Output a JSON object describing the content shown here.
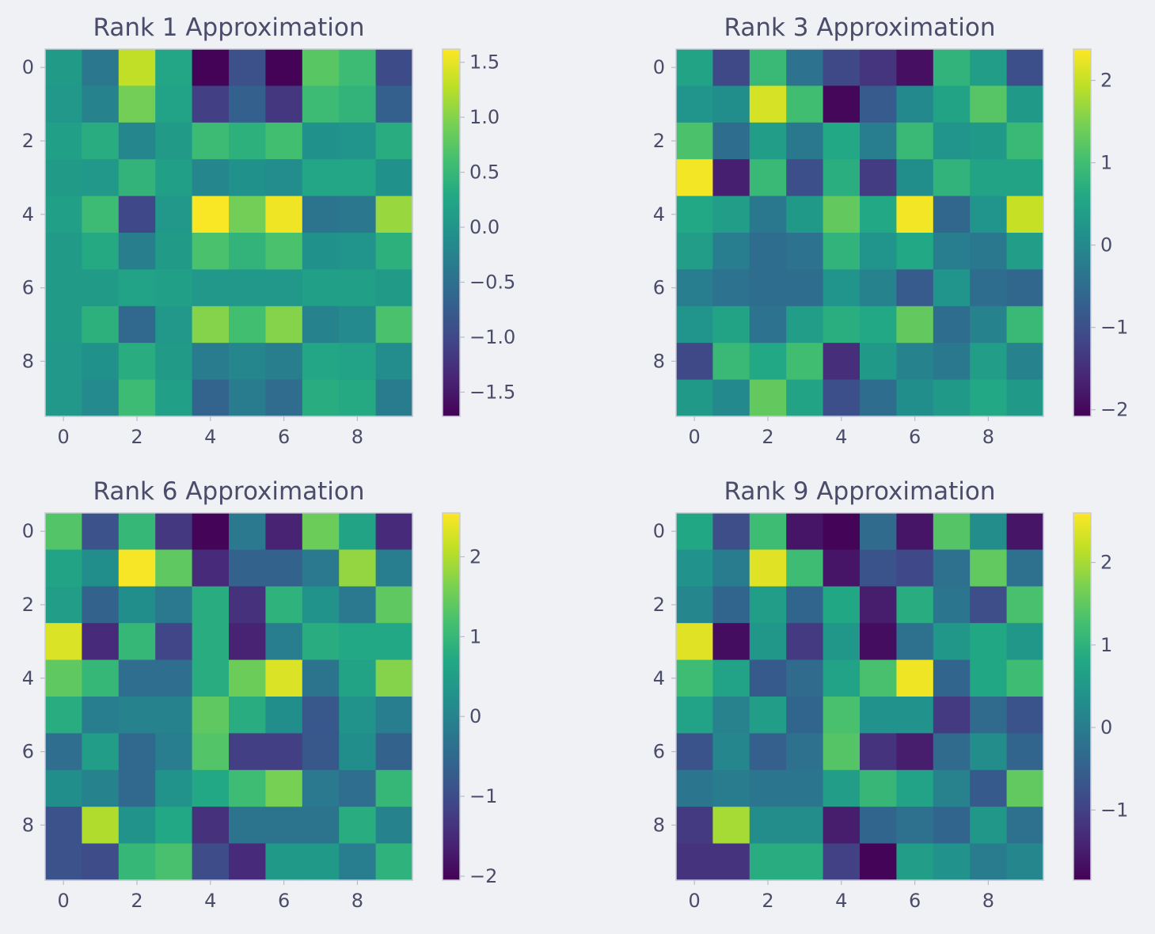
{
  "chart_data": [
    {
      "type": "heatmap",
      "title": "Rank 1 Approximation",
      "colormap": "viridis",
      "vmin": -1.72,
      "vmax": 1.62,
      "x_ticks": [
        0,
        2,
        4,
        6,
        8
      ],
      "y_ticks": [
        0,
        2,
        4,
        6,
        8
      ],
      "colorbar_ticks": [
        -1.5,
        -1.0,
        -0.5,
        0.0,
        0.5,
        1.0,
        1.5
      ],
      "colorbar_tick_labels": [
        "−1.5",
        "−1.0",
        "−0.5",
        "0.0",
        "0.5",
        "1.0",
        "1.5"
      ],
      "values": [
        [
          0.1,
          -0.4,
          1.3,
          0.25,
          -1.7,
          -0.9,
          -1.7,
          0.75,
          0.55,
          -0.95
        ],
        [
          0.05,
          -0.25,
          0.9,
          0.2,
          -1.1,
          -0.7,
          -1.2,
          0.55,
          0.45,
          -0.7
        ],
        [
          0.15,
          0.35,
          -0.2,
          0.1,
          0.55,
          0.4,
          0.6,
          -0.05,
          0.0,
          0.35
        ],
        [
          0.1,
          0.05,
          0.45,
          0.15,
          -0.2,
          -0.05,
          -0.1,
          0.25,
          0.25,
          -0.05
        ],
        [
          0.15,
          0.55,
          -1.0,
          0.05,
          1.6,
          0.9,
          1.55,
          -0.45,
          -0.4,
          1.1
        ],
        [
          0.1,
          0.3,
          -0.3,
          0.1,
          0.65,
          0.45,
          0.65,
          -0.05,
          0.0,
          0.4
        ],
        [
          0.1,
          0.1,
          0.2,
          0.15,
          0.05,
          0.05,
          0.05,
          0.15,
          0.15,
          0.1
        ],
        [
          0.1,
          0.4,
          -0.6,
          0.05,
          1.0,
          0.6,
          1.0,
          -0.25,
          -0.15,
          0.65
        ],
        [
          0.05,
          -0.05,
          0.35,
          0.1,
          -0.35,
          -0.2,
          -0.3,
          0.25,
          0.2,
          -0.1
        ],
        [
          0.05,
          -0.15,
          0.55,
          0.15,
          -0.65,
          -0.35,
          -0.55,
          0.35,
          0.3,
          -0.35
        ]
      ]
    },
    {
      "type": "heatmap",
      "title": "Rank 3 Approximation",
      "colormap": "viridis",
      "vmin": -2.08,
      "vmax": 2.38,
      "x_ticks": [
        0,
        2,
        4,
        6,
        8
      ],
      "y_ticks": [
        0,
        2,
        4,
        6,
        8
      ],
      "colorbar_ticks": [
        -2,
        -1,
        0,
        1,
        2
      ],
      "colorbar_tick_labels": [
        "−2",
        "−1",
        "0",
        "1",
        "2"
      ],
      "values": [
        [
          0.5,
          -1.1,
          0.9,
          -0.4,
          -1.1,
          -1.4,
          -1.9,
          0.8,
          0.4,
          -1.0
        ],
        [
          0.2,
          0.1,
          2.1,
          1.0,
          -2.0,
          -0.8,
          0.0,
          0.5,
          1.2,
          0.3
        ],
        [
          1.1,
          -0.5,
          0.4,
          -0.3,
          0.6,
          -0.2,
          0.9,
          0.2,
          0.3,
          0.9
        ],
        [
          2.3,
          -1.7,
          0.9,
          -1.0,
          0.7,
          -1.3,
          0.1,
          0.8,
          0.5,
          0.5
        ],
        [
          0.6,
          0.4,
          -0.3,
          0.3,
          1.3,
          0.6,
          2.3,
          -0.6,
          0.2,
          2.0
        ],
        [
          0.4,
          -0.2,
          -0.5,
          -0.4,
          0.8,
          0.2,
          0.6,
          -0.2,
          -0.3,
          0.4
        ],
        [
          -0.2,
          -0.4,
          -0.5,
          -0.5,
          0.2,
          -0.1,
          -0.8,
          0.2,
          -0.5,
          -0.6
        ],
        [
          0.2,
          0.5,
          -0.4,
          0.4,
          0.7,
          0.6,
          1.3,
          -0.5,
          -0.1,
          0.9
        ],
        [
          -1.1,
          0.9,
          0.6,
          1.0,
          -1.5,
          0.3,
          -0.1,
          -0.3,
          0.4,
          -0.1
        ],
        [
          0.3,
          0.0,
          1.3,
          0.5,
          -1.0,
          -0.5,
          0.1,
          0.3,
          0.6,
          0.3
        ]
      ]
    },
    {
      "type": "heatmap",
      "title": "Rank 6 Approximation",
      "colormap": "viridis",
      "vmin": -2.05,
      "vmax": 2.55,
      "x_ticks": [
        0,
        2,
        4,
        6,
        8
      ],
      "y_ticks": [
        0,
        2,
        4,
        6,
        8
      ],
      "colorbar_ticks": [
        -2,
        -1,
        0,
        1,
        2
      ],
      "colorbar_tick_labels": [
        "−2",
        "−1",
        "0",
        "1",
        "2"
      ],
      "values": [
        [
          1.3,
          -0.9,
          1.0,
          -1.3,
          -2.0,
          -0.2,
          -1.6,
          1.5,
          0.6,
          -1.5
        ],
        [
          0.6,
          0.2,
          2.5,
          1.4,
          -1.5,
          -0.6,
          -0.6,
          -0.2,
          1.8,
          -0.1
        ],
        [
          0.5,
          -0.6,
          0.2,
          -0.2,
          0.8,
          -1.4,
          0.9,
          0.3,
          -0.2,
          1.4
        ],
        [
          2.3,
          -1.5,
          1.0,
          -1.1,
          0.8,
          -1.6,
          -0.1,
          0.8,
          0.7,
          0.7
        ],
        [
          1.4,
          1.0,
          -0.4,
          -0.4,
          0.8,
          1.5,
          2.3,
          -0.3,
          0.6,
          1.7
        ],
        [
          0.8,
          -0.1,
          0.0,
          0.0,
          1.4,
          0.8,
          0.2,
          -0.8,
          0.3,
          -0.1
        ],
        [
          -0.4,
          0.5,
          -0.5,
          -0.1,
          1.3,
          -1.2,
          -1.2,
          -0.8,
          0.2,
          -0.6
        ],
        [
          0.2,
          0.0,
          -0.5,
          0.3,
          0.7,
          1.1,
          1.6,
          -0.2,
          -0.4,
          1.0
        ],
        [
          -0.9,
          2.0,
          0.3,
          0.7,
          -1.4,
          -0.3,
          -0.3,
          -0.3,
          0.8,
          0.0
        ],
        [
          -0.9,
          -1.0,
          1.0,
          1.2,
          -1.0,
          -1.5,
          0.4,
          0.4,
          -0.1,
          0.9
        ]
      ]
    },
    {
      "type": "heatmap",
      "title": "Rank 9 Approximation",
      "colormap": "viridis",
      "vmin": -1.85,
      "vmax": 2.6,
      "x_ticks": [
        0,
        2,
        4,
        6,
        8
      ],
      "y_ticks": [
        0,
        2,
        4,
        6,
        8
      ],
      "colorbar_ticks": [
        -1,
        0,
        1,
        2
      ],
      "colorbar_tick_labels": [
        "−1",
        "0",
        "1",
        "2"
      ],
      "values": [
        [
          0.8,
          -0.8,
          1.2,
          -1.6,
          -1.8,
          -0.3,
          -1.6,
          1.4,
          0.3,
          -1.6
        ],
        [
          0.4,
          0.0,
          2.4,
          1.2,
          -1.6,
          -0.7,
          -0.9,
          -0.2,
          1.5,
          -0.2
        ],
        [
          0.2,
          -0.4,
          0.6,
          -0.4,
          0.8,
          -1.5,
          0.9,
          -0.1,
          -0.8,
          1.3
        ],
        [
          2.4,
          -1.7,
          0.5,
          -1.1,
          0.5,
          -1.7,
          -0.2,
          0.5,
          0.8,
          0.5
        ],
        [
          1.2,
          0.7,
          -0.6,
          -0.3,
          0.7,
          1.3,
          2.5,
          -0.4,
          0.8,
          1.2
        ],
        [
          0.7,
          0.1,
          0.6,
          -0.4,
          1.3,
          0.4,
          0.4,
          -1.1,
          -0.3,
          -0.7
        ],
        [
          -0.7,
          0.2,
          -0.5,
          -0.2,
          1.4,
          -1.2,
          -1.5,
          -0.3,
          0.3,
          -0.4
        ],
        [
          -0.1,
          0.0,
          -0.1,
          -0.1,
          0.6,
          1.1,
          0.7,
          0.1,
          -0.6,
          1.5
        ],
        [
          -1.1,
          2.0,
          0.3,
          0.3,
          -1.5,
          -0.4,
          -0.2,
          -0.4,
          0.5,
          -0.2
        ],
        [
          -1.2,
          -1.2,
          0.9,
          0.9,
          -1.0,
          -1.8,
          0.6,
          0.4,
          0.0,
          0.2
        ]
      ]
    }
  ]
}
